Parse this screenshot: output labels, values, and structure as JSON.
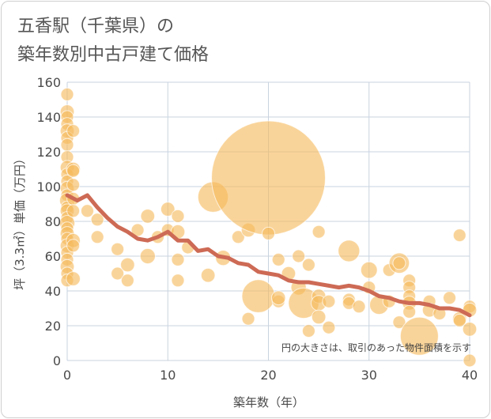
{
  "chart_data": {
    "type": "scatter",
    "title_line1": "五香駅（千葉県）の",
    "title_line2": "築年数別中古戸建て価格",
    "xlabel": "築年数（年）",
    "ylabel": "坪（3.3㎡）単価（万円）",
    "xlim": [
      0,
      40
    ],
    "ylim": [
      0,
      160
    ],
    "xticks": [
      0,
      10,
      20,
      30,
      40
    ],
    "yticks": [
      0,
      20,
      40,
      60,
      80,
      100,
      120,
      140,
      160
    ],
    "note": "円の大きさは、取引のあった物件面積を示す",
    "colors": {
      "bubble": "#f5b95c",
      "trend": "#cd6a55",
      "grid": "#c9d3df",
      "plot_bg": "#ffffff"
    },
    "points": [
      {
        "x": 0,
        "y": 153,
        "s": 1.0
      },
      {
        "x": 0,
        "y": 143,
        "s": 1.1
      },
      {
        "x": 0,
        "y": 140,
        "s": 1.0
      },
      {
        "x": 0,
        "y": 136,
        "s": 1.0
      },
      {
        "x": 0,
        "y": 132,
        "s": 1.1
      },
      {
        "x": 0,
        "y": 128,
        "s": 1.0
      },
      {
        "x": 0,
        "y": 124,
        "s": 1.0
      },
      {
        "x": 0,
        "y": 117,
        "s": 1.0
      },
      {
        "x": 0,
        "y": 111,
        "s": 1.1
      },
      {
        "x": 0,
        "y": 107,
        "s": 1.0
      },
      {
        "x": 0,
        "y": 103,
        "s": 1.0
      },
      {
        "x": 0,
        "y": 99,
        "s": 1.1
      },
      {
        "x": 0,
        "y": 95,
        "s": 1.0
      },
      {
        "x": 0,
        "y": 92,
        "s": 1.2
      },
      {
        "x": 0,
        "y": 88,
        "s": 1.0
      },
      {
        "x": 0,
        "y": 86,
        "s": 1.1
      },
      {
        "x": 0,
        "y": 82,
        "s": 1.0
      },
      {
        "x": 0,
        "y": 79,
        "s": 1.2
      },
      {
        "x": 0,
        "y": 76,
        "s": 1.0
      },
      {
        "x": 0,
        "y": 73,
        "s": 1.1
      },
      {
        "x": 0,
        "y": 70,
        "s": 1.0
      },
      {
        "x": 0,
        "y": 66,
        "s": 1.1
      },
      {
        "x": 0,
        "y": 62,
        "s": 1.0
      },
      {
        "x": 0,
        "y": 58,
        "s": 1.0
      },
      {
        "x": 0,
        "y": 54,
        "s": 1.1
      },
      {
        "x": 0,
        "y": 50,
        "s": 1.0
      },
      {
        "x": 0,
        "y": 46,
        "s": 1.0
      },
      {
        "x": 0.6,
        "y": 132,
        "s": 1.0
      },
      {
        "x": 0.6,
        "y": 110,
        "s": 1.1
      },
      {
        "x": 0.6,
        "y": 109,
        "s": 1.0
      },
      {
        "x": 0.6,
        "y": 101,
        "s": 1.0
      },
      {
        "x": 0.6,
        "y": 93,
        "s": 1.0
      },
      {
        "x": 0.6,
        "y": 86,
        "s": 1.0
      },
      {
        "x": 0.6,
        "y": 69,
        "s": 1.1
      },
      {
        "x": 0.6,
        "y": 66,
        "s": 1.0
      },
      {
        "x": 0.6,
        "y": 47,
        "s": 1.1
      },
      {
        "x": 2,
        "y": 86,
        "s": 1.0
      },
      {
        "x": 3,
        "y": 81,
        "s": 1.0
      },
      {
        "x": 3,
        "y": 71,
        "s": 1.0
      },
      {
        "x": 5,
        "y": 64,
        "s": 1.0
      },
      {
        "x": 5,
        "y": 50,
        "s": 1.0
      },
      {
        "x": 6,
        "y": 55,
        "s": 1.1
      },
      {
        "x": 6,
        "y": 46,
        "s": 1.0
      },
      {
        "x": 7,
        "y": 75,
        "s": 1.0
      },
      {
        "x": 8,
        "y": 83,
        "s": 1.1
      },
      {
        "x": 8,
        "y": 60,
        "s": 1.2
      },
      {
        "x": 9,
        "y": 71,
        "s": 1.0
      },
      {
        "x": 10,
        "y": 87,
        "s": 1.1
      },
      {
        "x": 10,
        "y": 75,
        "s": 1.0
      },
      {
        "x": 11,
        "y": 83,
        "s": 1.0
      },
      {
        "x": 11,
        "y": 74,
        "s": 1.1
      },
      {
        "x": 11,
        "y": 58,
        "s": 1.0
      },
      {
        "x": 11,
        "y": 46,
        "s": 1.0
      },
      {
        "x": 12,
        "y": 65,
        "s": 1.0
      },
      {
        "x": 14,
        "y": 49,
        "s": 1.1
      },
      {
        "x": 14.5,
        "y": 94,
        "s": 2.4
      },
      {
        "x": 15.5,
        "y": 59,
        "s": 1.2
      },
      {
        "x": 17,
        "y": 71,
        "s": 1.0
      },
      {
        "x": 18,
        "y": 75,
        "s": 1.1
      },
      {
        "x": 18,
        "y": 24,
        "s": 1.0
      },
      {
        "x": 19,
        "y": 37,
        "s": 2.6
      },
      {
        "x": 20,
        "y": 105,
        "s": 9.0
      },
      {
        "x": 20,
        "y": 73,
        "s": 1.0
      },
      {
        "x": 21,
        "y": 58,
        "s": 1.0
      },
      {
        "x": 21,
        "y": 34,
        "s": 1.0
      },
      {
        "x": 21,
        "y": 36,
        "s": 1.1
      },
      {
        "x": 22,
        "y": 50,
        "s": 1.1
      },
      {
        "x": 23,
        "y": 60,
        "s": 1.0
      },
      {
        "x": 23,
        "y": 42,
        "s": 1.2
      },
      {
        "x": 23.5,
        "y": 33,
        "s": 2.4
      },
      {
        "x": 24,
        "y": 55,
        "s": 1.0
      },
      {
        "x": 24,
        "y": 17,
        "s": 1.0
      },
      {
        "x": 25,
        "y": 74,
        "s": 1.0
      },
      {
        "x": 25,
        "y": 37,
        "s": 1.1
      },
      {
        "x": 25,
        "y": 33,
        "s": 1.2
      },
      {
        "x": 25,
        "y": 25,
        "s": 1.1
      },
      {
        "x": 26,
        "y": 34,
        "s": 1.0
      },
      {
        "x": 26,
        "y": 19,
        "s": 1.0
      },
      {
        "x": 28,
        "y": 63,
        "s": 1.7
      },
      {
        "x": 28,
        "y": 35,
        "s": 1.0
      },
      {
        "x": 28,
        "y": 33,
        "s": 1.0
      },
      {
        "x": 29,
        "y": 31,
        "s": 1.0
      },
      {
        "x": 30,
        "y": 52,
        "s": 1.3
      },
      {
        "x": 30,
        "y": 42,
        "s": 1.0
      },
      {
        "x": 31,
        "y": 32,
        "s": 1.5
      },
      {
        "x": 32,
        "y": 52,
        "s": 1.0
      },
      {
        "x": 32,
        "y": 34,
        "s": 1.0
      },
      {
        "x": 33,
        "y": 56,
        "s": 1.6
      },
      {
        "x": 33,
        "y": 56,
        "s": 1.0
      },
      {
        "x": 33,
        "y": 22,
        "s": 1.0
      },
      {
        "x": 34,
        "y": 46,
        "s": 1.0
      },
      {
        "x": 34,
        "y": 42,
        "s": 1.0
      },
      {
        "x": 34,
        "y": 37,
        "s": 1.0
      },
      {
        "x": 34,
        "y": 33,
        "s": 1.1
      },
      {
        "x": 34,
        "y": 28,
        "s": 1.0
      },
      {
        "x": 35,
        "y": 14,
        "s": 3.0
      },
      {
        "x": 36,
        "y": 34,
        "s": 1.0
      },
      {
        "x": 36,
        "y": 29,
        "s": 1.1
      },
      {
        "x": 37,
        "y": 27,
        "s": 1.0
      },
      {
        "x": 38,
        "y": 36,
        "s": 1.0
      },
      {
        "x": 39,
        "y": 72,
        "s": 1.0
      },
      {
        "x": 39,
        "y": 24,
        "s": 1.1
      },
      {
        "x": 39,
        "y": 23,
        "s": 1.0
      },
      {
        "x": 40,
        "y": 31,
        "s": 1.0
      },
      {
        "x": 40,
        "y": 29,
        "s": 1.1
      },
      {
        "x": 40,
        "y": 18,
        "s": 1.1
      },
      {
        "x": 40,
        "y": 0,
        "s": 1.0
      }
    ],
    "trend": {
      "x": [
        0,
        1,
        2,
        3,
        4,
        5,
        6,
        7,
        8,
        9,
        10,
        11,
        12,
        13,
        14,
        15,
        16,
        17,
        18,
        19,
        20,
        21,
        22,
        23,
        24,
        25,
        26,
        27,
        28,
        29,
        30,
        31,
        32,
        33,
        34,
        35,
        36,
        37,
        38,
        39,
        40
      ],
      "y": [
        95,
        92,
        95,
        88,
        82,
        77,
        74,
        70,
        69,
        71,
        74,
        69,
        69,
        63,
        64,
        60,
        59,
        56,
        55,
        51,
        50,
        49,
        46,
        45,
        45,
        44,
        43,
        42,
        43,
        42,
        40,
        37,
        36,
        34,
        33,
        33,
        32,
        30,
        30,
        29,
        26
      ]
    }
  }
}
